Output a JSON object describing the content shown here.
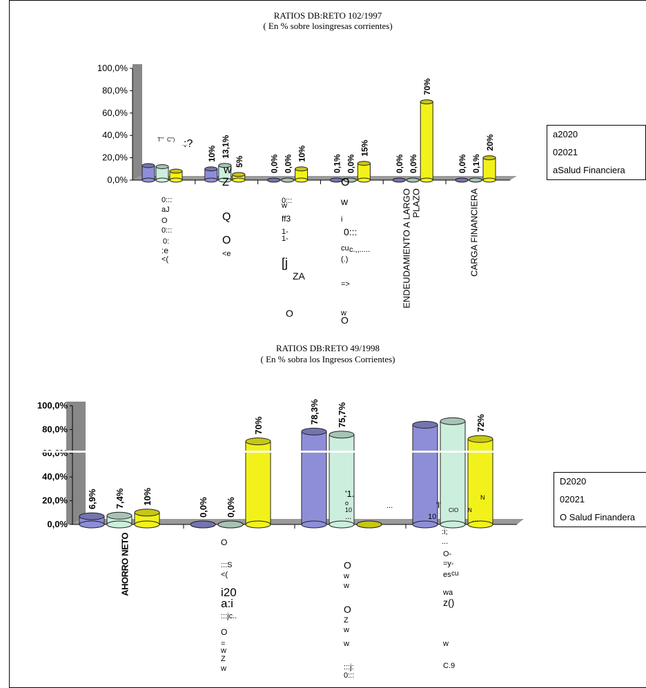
{
  "chart_data": [
    {
      "type": "bar",
      "title": "RATIOS DB:RETO 102/1997",
      "subtitle": "( En % sobre losingresas corrientes)",
      "ylim": [
        0,
        100
      ],
      "yticks": [
        "0,0%",
        "20,0%",
        "40,0%",
        "60,0%",
        "80,0%",
        "100,0%"
      ],
      "categories": [
        "",
        "",
        "",
        "",
        "ENDEUDAMIENTO A LARGO PLAZO",
        "CARGA FINANCIERA"
      ],
      "series": [
        {
          "name": "a2020",
          "color": "#8E8ED8",
          "values": [
            13,
            10,
            0,
            0.1,
            0,
            0
          ],
          "labels": [
            "",
            "10%",
            "0,0%",
            "0,1%",
            "0,0%",
            "0,0%"
          ]
        },
        {
          "name": "02021",
          "color": "#CCEEDD",
          "values": [
            12,
            13.1,
            0,
            0,
            0,
            0.1
          ],
          "labels": [
            "",
            "13,1%",
            "0,0%",
            "0,0%",
            "0,0%",
            "0,1%"
          ]
        },
        {
          "name": "aSalud Financiera",
          "color": "#F2F21A",
          "values": [
            8,
            5,
            10,
            15,
            70,
            20
          ],
          "labels": [
            "",
            "5%",
            "10%",
            "15%",
            "70%",
            "20%"
          ]
        }
      ],
      "legend": "right"
    },
    {
      "type": "bar",
      "title": "RATIOS DB:RETO 49/1998",
      "subtitle": "( En % sobra los Ingresos Corrientes)",
      "ylim": [
        0,
        100
      ],
      "yticks": [
        "0,0%",
        "20,0%",
        "40,0%",
        "60,0%",
        "80,0%",
        "100,0%"
      ],
      "categories": [
        "AHORRO NETO",
        "",
        "",
        ""
      ],
      "series": [
        {
          "name": "D2020",
          "color": "#8E8ED8",
          "values": [
            6.9,
            0,
            78.3,
            84
          ],
          "labels": [
            "6,9%",
            "0,0%",
            "78,3%",
            ""
          ]
        },
        {
          "name": "02021",
          "color": "#CCEEDD",
          "values": [
            7.4,
            0,
            75.7,
            87
          ],
          "labels": [
            "7,4%",
            "0,0%",
            "75,7%",
            ""
          ]
        },
        {
          "name": "O Salud Finandera",
          "color": "#F2F21A",
          "values": [
            10,
            70,
            0,
            72
          ],
          "labels": [
            "10%",
            "70%",
            "",
            "72%"
          ]
        }
      ],
      "legend": "right"
    }
  ],
  "scan_noise": {
    "c1": [
      ":?",
      "0:::",
      "aJ",
      "O",
      "0:::",
      "0:",
      ":e",
      "<(",
      "w",
      "Z",
      "Q",
      "O",
      "<e",
      "0:::",
      "w",
      "ff3",
      "1-",
      "1-",
      "[j",
      "ZA",
      "O",
      "O",
      "w",
      "i",
      "0:::",
      "cu",
      "c.,,.....",
      "(.)",
      "=>",
      "w",
      "O",
      "...",
      "T'''",
      "C\")",
      "C\")"
    ],
    "c2": [
      "O",
      ":::S",
      "<(",
      "i20",
      "a:i",
      ":::jc..",
      "O",
      "=",
      "w",
      "Z",
      "w",
      "O",
      "w",
      "w",
      "O",
      "Z",
      "w",
      "w",
      ":::j:",
      "0:::",
      "'1.",
      "o",
      "10",
      "...",
      "...",
      ":i;",
      "...",
      "O-",
      "=y-",
      "es",
      "cu",
      "wa",
      "z()",
      "w",
      "C.9",
      "'l'",
      "N",
      "CIO",
      "N",
      "10",
      "..."
    ]
  }
}
